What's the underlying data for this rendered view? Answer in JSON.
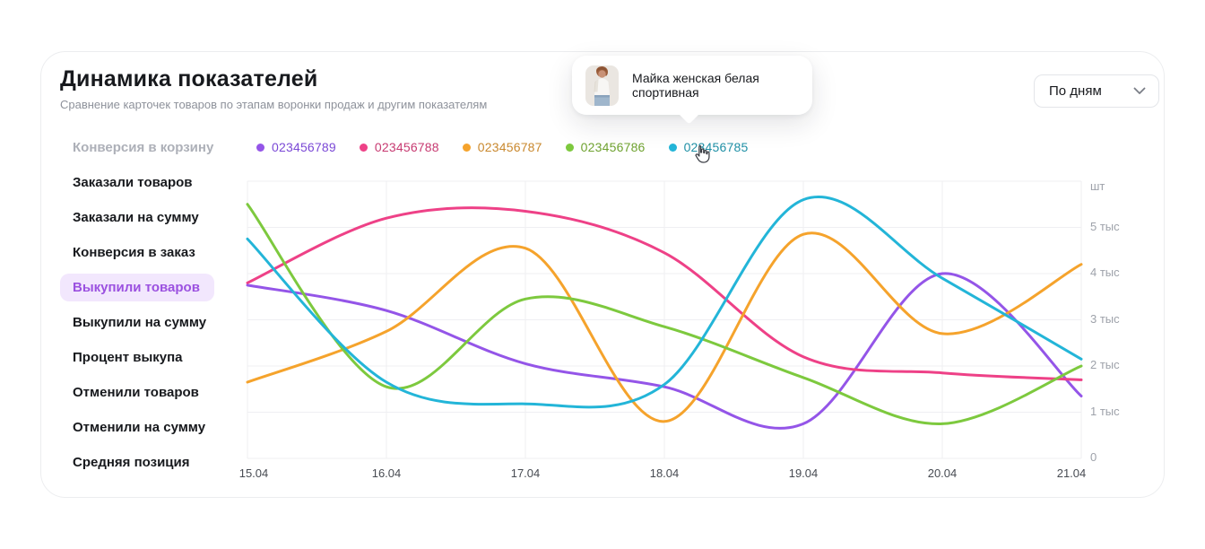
{
  "window": {
    "background": "#FFFFFF"
  },
  "card": {
    "background": "#FFFFFF",
    "border_color": "#ECEDEF"
  },
  "header": {
    "title": "Динамика показателей",
    "subtitle": "Сравнение карточек товаров по этапам воронки продаж и другим показателям"
  },
  "period_dropdown": {
    "value": "По дням"
  },
  "product_tooltip": {
    "name": "Майка женская белая спортивная"
  },
  "sidebar": {
    "items": [
      {
        "label": "Конверсия в корзину",
        "state": "disabled"
      },
      {
        "label": "Заказали товаров",
        "state": "default"
      },
      {
        "label": "Заказали на сумму",
        "state": "default"
      },
      {
        "label": "Конверсия в заказ",
        "state": "default"
      },
      {
        "label": "Выкупили товаров",
        "state": "selected"
      },
      {
        "label": "Выкупили на сумму",
        "state": "default"
      },
      {
        "label": "Процент выкупа",
        "state": "default"
      },
      {
        "label": "Отменили товаров",
        "state": "default"
      },
      {
        "label": "Отменили на сумму",
        "state": "default"
      },
      {
        "label": "Средняя позиция",
        "state": "default"
      }
    ],
    "selected_bg": "#F2E7FD",
    "selected_color": "#9B51E0",
    "disabled_color": "#ADB0B8"
  },
  "legend": {
    "items": [
      {
        "label": "023456789",
        "dot_color": "#9455E8",
        "text_color": "#7B49D6"
      },
      {
        "label": "023456788",
        "dot_color": "#EE4187",
        "text_color": "#C73A71"
      },
      {
        "label": "023456787",
        "dot_color": "#F5A32C",
        "text_color": "#C9882E"
      },
      {
        "label": "023456786",
        "dot_color": "#7DC93E",
        "text_color": "#6FA230"
      },
      {
        "label": "023456785",
        "dot_color": "#23B5D8",
        "text_color": "#1F90A6"
      }
    ]
  },
  "chart_data": {
    "type": "line",
    "categories": [
      "15.04",
      "16.04",
      "17.04",
      "18.04",
      "19.04",
      "20.04",
      "21.04"
    ],
    "x_numeric": [
      15,
      16,
      17,
      18,
      19,
      20,
      21
    ],
    "unit_label": "шт",
    "ylim": [
      0,
      6000
    ],
    "grid": true,
    "legend_position": "top",
    "yticks": [
      {
        "value": 0,
        "label": "0"
      },
      {
        "value": 1000,
        "label": "1 тыс"
      },
      {
        "value": 2000,
        "label": "2 тыс"
      },
      {
        "value": 3000,
        "label": "3 тыс"
      },
      {
        "value": 4000,
        "label": "4 тыс"
      },
      {
        "value": 5000,
        "label": "5 тыс"
      },
      {
        "value": 6000,
        "label": "шт"
      }
    ],
    "series": [
      {
        "name": "023456789",
        "color": "#9455E8",
        "values": [
          3750,
          3200,
          2050,
          1550,
          750,
          4000,
          1350
        ]
      },
      {
        "name": "023456788",
        "color": "#EE4187",
        "values": [
          3800,
          5200,
          5350,
          4450,
          2200,
          1850,
          1700
        ]
      },
      {
        "name": "023456787",
        "color": "#F5A32C",
        "values": [
          1650,
          2750,
          4550,
          800,
          4850,
          2700,
          4200
        ]
      },
      {
        "name": "023456786",
        "color": "#7DC93E",
        "values": [
          5500,
          1550,
          3450,
          2850,
          1750,
          750,
          2000
        ]
      },
      {
        "name": "023456785",
        "color": "#23B5D8",
        "values": [
          4750,
          1650,
          1180,
          1600,
          5600,
          3900,
          2150
        ]
      }
    ]
  }
}
